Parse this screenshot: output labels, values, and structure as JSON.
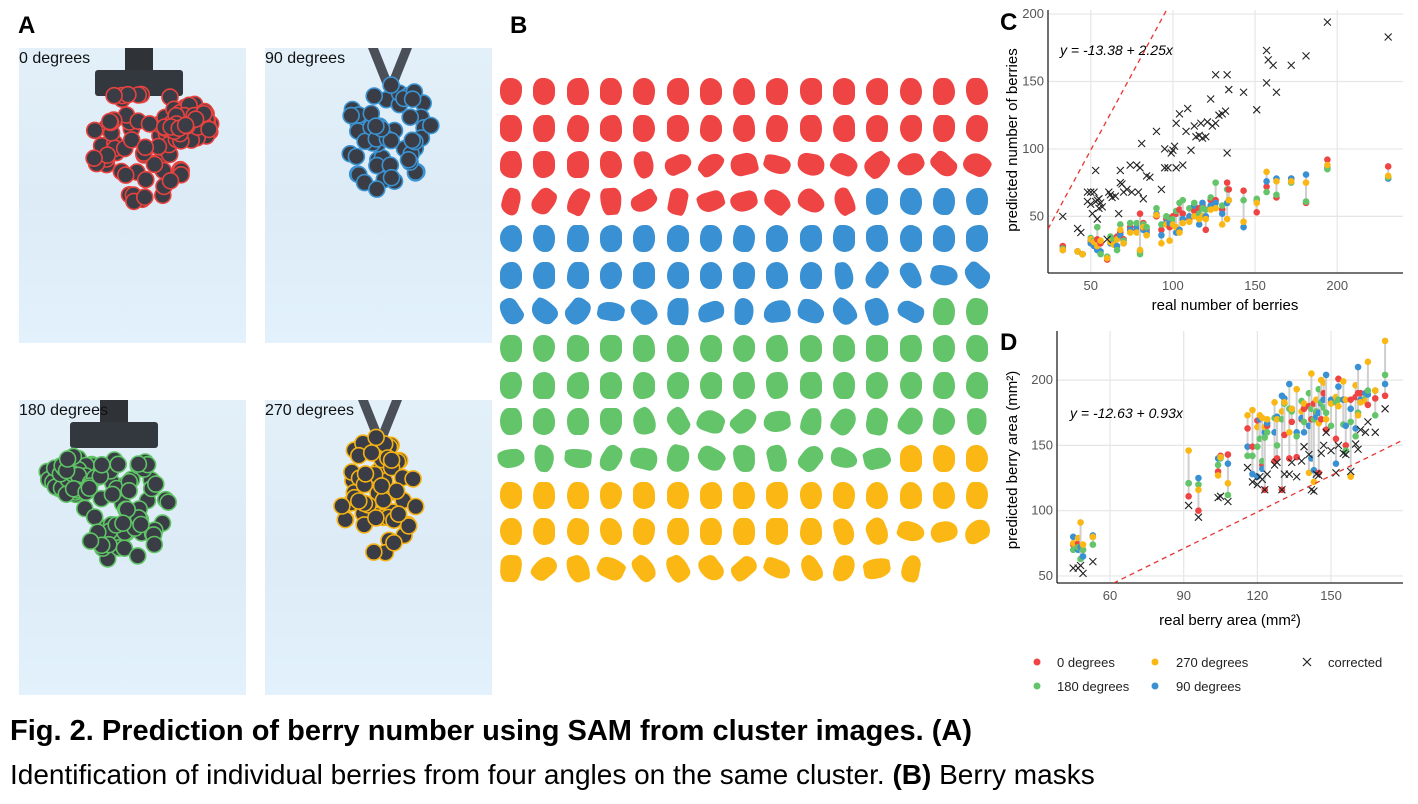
{
  "panels": {
    "a": {
      "letter": "A",
      "photos": [
        {
          "label": "0 degrees",
          "color": "#e8423f"
        },
        {
          "label": "90 degrees",
          "color": "#3a93d3"
        },
        {
          "label": "180 degrees",
          "color": "#5fc466"
        },
        {
          "label": "270 degrees",
          "color": "#f5b214"
        }
      ]
    },
    "b": {
      "letter": "B",
      "mask_counts": {
        "0 degrees": 56,
        "90 degrees": 47,
        "180 degrees": 59,
        "270 degrees": 46
      }
    },
    "c": {
      "letter": "C"
    },
    "d": {
      "letter": "D"
    }
  },
  "colors": {
    "0 degrees": "#ef4444",
    "90 degrees": "#3990d2",
    "180 degrees": "#63c46a",
    "270 degrees": "#fbb714",
    "corrected": "#222222",
    "fit": "#e8352f"
  },
  "chart_data": [
    {
      "type": "scatter",
      "panel": "C",
      "xlabel": "real number of berries",
      "ylabel": "predicted number of berries",
      "xlim": [
        24,
        240
      ],
      "ylim": [
        8,
        203
      ],
      "xticks": [
        50,
        100,
        150,
        200
      ],
      "yticks": [
        50,
        100,
        150,
        200
      ],
      "grid": true,
      "equation": "y = -13.38 + 2.25x",
      "fit": {
        "intercept": -13.38,
        "slope": 2.25
      },
      "angle_series_order": [
        "0 degrees",
        "90 degrees",
        "180 degrees",
        "270 degrees"
      ],
      "angle_points": [
        [
          33,
          28,
          25,
          26,
          25
        ],
        [
          42,
          24,
          24,
          24,
          24
        ],
        [
          45,
          22,
          22,
          22,
          22
        ],
        [
          50,
          32,
          30,
          34,
          33
        ],
        [
          52,
          30,
          28,
          32,
          31
        ],
        [
          54,
          33,
          25,
          42,
          28
        ],
        [
          56,
          30,
          24,
          22,
          32
        ],
        [
          60,
          18,
          20,
          20,
          19
        ],
        [
          62,
          33,
          30,
          35,
          31
        ],
        [
          64,
          30,
          32,
          33,
          29
        ],
        [
          66,
          35,
          28,
          25,
          33
        ],
        [
          68,
          38,
          36,
          44,
          40
        ],
        [
          70,
          33,
          30,
          32,
          30
        ],
        [
          74,
          42,
          40,
          45,
          38
        ],
        [
          78,
          40,
          42,
          45,
          38
        ],
        [
          80,
          52,
          24,
          22,
          25
        ],
        [
          82,
          45,
          40,
          44,
          42
        ],
        [
          84,
          40,
          38,
          42,
          36
        ],
        [
          90,
          50,
          52,
          56,
          51
        ],
        [
          93,
          40,
          36,
          44,
          30
        ],
        [
          96,
          48,
          45,
          50,
          44
        ],
        [
          98,
          42,
          45,
          49,
          32
        ],
        [
          100,
          50,
          46,
          48,
          44
        ],
        [
          102,
          52,
          38,
          54,
          42
        ],
        [
          104,
          55,
          40,
          60,
          38
        ],
        [
          106,
          52,
          48,
          62,
          45
        ],
        [
          110,
          48,
          50,
          56,
          46
        ],
        [
          113,
          54,
          58,
          60,
          50
        ],
        [
          116,
          56,
          44,
          52,
          48
        ],
        [
          118,
          58,
          60,
          56,
          50
        ],
        [
          120,
          40,
          50,
          55,
          48
        ],
        [
          123,
          62,
          58,
          64,
          55
        ],
        [
          126,
          62,
          60,
          75,
          56
        ],
        [
          130,
          55,
          52,
          58,
          44
        ],
        [
          133,
          75,
          60,
          70,
          48
        ],
        [
          134,
          70,
          62,
          62,
          62
        ],
        [
          143,
          69,
          42,
          62,
          46
        ],
        [
          151,
          53,
          62,
          63,
          60
        ],
        [
          157,
          72,
          76,
          68,
          83
        ],
        [
          163,
          64,
          78,
          66,
          76
        ],
        [
          172,
          78,
          78,
          75,
          76
        ],
        [
          181,
          60,
          81,
          61,
          75
        ],
        [
          194,
          92,
          86,
          85,
          88
        ],
        [
          231,
          87,
          78,
          79,
          80
        ]
      ],
      "corrected": [
        [
          33,
          50
        ],
        [
          42,
          41
        ],
        [
          44,
          38
        ],
        [
          48,
          68
        ],
        [
          48,
          61
        ],
        [
          50,
          68
        ],
        [
          50,
          59
        ],
        [
          51,
          52
        ],
        [
          52,
          68
        ],
        [
          53,
          61
        ],
        [
          53,
          84
        ],
        [
          54,
          62
        ],
        [
          54,
          48
        ],
        [
          55,
          63
        ],
        [
          55,
          56
        ],
        [
          56,
          60
        ],
        [
          57,
          57
        ],
        [
          60,
          33
        ],
        [
          61,
          68
        ],
        [
          62,
          66
        ],
        [
          63,
          64
        ],
        [
          65,
          65
        ],
        [
          67,
          52
        ],
        [
          68,
          75
        ],
        [
          68,
          84
        ],
        [
          69,
          74
        ],
        [
          70,
          68
        ],
        [
          72,
          70
        ],
        [
          74,
          88
        ],
        [
          75,
          68
        ],
        [
          78,
          88
        ],
        [
          79,
          68
        ],
        [
          80,
          86
        ],
        [
          81,
          104
        ],
        [
          82,
          63
        ],
        [
          84,
          80
        ],
        [
          86,
          79
        ],
        [
          90,
          113
        ],
        [
          93,
          70
        ],
        [
          95,
          100
        ],
        [
          95,
          86
        ],
        [
          97,
          86
        ],
        [
          99,
          97
        ],
        [
          100,
          99
        ],
        [
          101,
          102
        ],
        [
          102,
          119
        ],
        [
          102,
          86
        ],
        [
          104,
          126
        ],
        [
          106,
          88
        ],
        [
          108,
          113
        ],
        [
          109,
          130
        ],
        [
          111,
          99
        ],
        [
          113,
          117
        ],
        [
          114,
          109
        ],
        [
          116,
          110
        ],
        [
          117,
          119
        ],
        [
          118,
          108
        ],
        [
          120,
          109
        ],
        [
          121,
          120
        ],
        [
          123,
          137
        ],
        [
          124,
          117
        ],
        [
          126,
          155
        ],
        [
          126,
          119
        ],
        [
          128,
          125
        ],
        [
          130,
          126
        ],
        [
          132,
          128
        ],
        [
          133,
          155
        ],
        [
          133,
          97
        ],
        [
          134,
          144
        ],
        [
          143,
          142
        ],
        [
          151,
          129
        ],
        [
          157,
          173
        ],
        [
          157,
          149
        ],
        [
          158,
          166
        ],
        [
          161,
          162
        ],
        [
          163,
          142
        ],
        [
          172,
          162
        ],
        [
          181,
          169
        ],
        [
          194,
          194
        ],
        [
          231,
          183
        ]
      ]
    },
    {
      "type": "scatter",
      "panel": "D",
      "xlabel": "real berry area (mm²)",
      "ylabel": "predicted berry area (mm²)",
      "xlim": [
        38.4,
        179.3
      ],
      "ylim": [
        44.6,
        237.6
      ],
      "xticks": [
        60,
        90,
        120,
        150
      ],
      "yticks": [
        50,
        100,
        150,
        200
      ],
      "grid": true,
      "equation": "y = -12.63 + 0.93x",
      "fit": {
        "intercept": -12.63,
        "slope": 0.93
      },
      "angle_series_order": [
        "0 degrees",
        "90 degrees",
        "180 degrees",
        "270 degrees"
      ],
      "points": [
        [
          45,
          74,
          80,
          70,
          75,
          56
        ],
        [
          47,
          75,
          70,
          72,
          79,
          56
        ],
        [
          48,
          72,
          72,
          63,
          91,
          58
        ],
        [
          49,
          70,
          65,
          70,
          74,
          52
        ],
        [
          53,
          80,
          81,
          74,
          80,
          61
        ],
        [
          92,
          111,
          121,
          121,
          146,
          104
        ],
        [
          96,
          100,
          125,
          120,
          116,
          95
        ],
        [
          104,
          130,
          140,
          135,
          127,
          110
        ],
        [
          105,
          142,
          141,
          140,
          141,
          111
        ],
        [
          108,
          143,
          136,
          112,
          121,
          107
        ],
        [
          116,
          163,
          149,
          142,
          173,
          133
        ],
        [
          118,
          149,
          128,
          142,
          177,
          122
        ],
        [
          120,
          169,
          126,
          149,
          164,
          120
        ],
        [
          121,
          170,
          170,
          155,
          173,
          126
        ],
        [
          122,
          135,
          132,
          138,
          171,
          124
        ],
        [
          123,
          116,
          160,
          156,
          164,
          116
        ],
        [
          124,
          165,
          167,
          160,
          170,
          128
        ],
        [
          127,
          138,
          160,
          171,
          183,
          135
        ],
        [
          128,
          140,
          172,
          150,
          170,
          137
        ],
        [
          130,
          116,
          188,
          170,
          176,
          116
        ],
        [
          131,
          158,
          186,
          182,
          183,
          128
        ],
        [
          133,
          140,
          197,
          178,
          160,
          128
        ],
        [
          134,
          168,
          178,
          176,
          178,
          137
        ],
        [
          136,
          141,
          160,
          157,
          193,
          126
        ],
        [
          138,
          170,
          171,
          184,
          176,
          138
        ],
        [
          139,
          178,
          160,
          168,
          182,
          149
        ],
        [
          141,
          180,
          165,
          190,
          129,
          143
        ],
        [
          142,
          170,
          140,
          178,
          205,
          116
        ],
        [
          143,
          182,
          131,
          170,
          122,
          115
        ],
        [
          144,
          175,
          172,
          176,
          185,
          128
        ],
        [
          145,
          129,
          175,
          193,
          167,
          127
        ],
        [
          146,
          170,
          182,
          183,
          200,
          144
        ],
        [
          147,
          190,
          185,
          179,
          198,
          150
        ],
        [
          148,
          162,
          204,
          175,
          170,
          160
        ],
        [
          150,
          183,
          185,
          165,
          182,
          146
        ],
        [
          152,
          155,
          136,
          183,
          187,
          129
        ],
        [
          153,
          201,
          195,
          185,
          180,
          150
        ],
        [
          155,
          185,
          185,
          166,
          199,
          144
        ],
        [
          156,
          150,
          165,
          146,
          185,
          143
        ],
        [
          158,
          185,
          178,
          168,
          126,
          130
        ],
        [
          160,
          187,
          163,
          157,
          196,
          151
        ],
        [
          161,
          190,
          210,
          175,
          173,
          147
        ],
        [
          162,
          190,
          185,
          183,
          183,
          162
        ],
        [
          164,
          185,
          190,
          186,
          184,
          160
        ],
        [
          165,
          181,
          189,
          192,
          214,
          168
        ],
        [
          168,
          186,
          192,
          173,
          192,
          160
        ],
        [
          172,
          188,
          197,
          204,
          230,
          178
        ]
      ],
      "legend": {
        "placement": "bottom",
        "entries": [
          "0 degrees",
          "270 degrees",
          "corrected",
          "180 degrees",
          "90 degrees"
        ]
      }
    }
  ],
  "caption": {
    "line1": "Fig. 2. Prediction of berry number using SAM from cluster images. (A)",
    "line2_a": "Identification of individual berries from four angles on the same cluster. ",
    "line2_b": "(B)",
    "line2_c": " Berry masks"
  }
}
